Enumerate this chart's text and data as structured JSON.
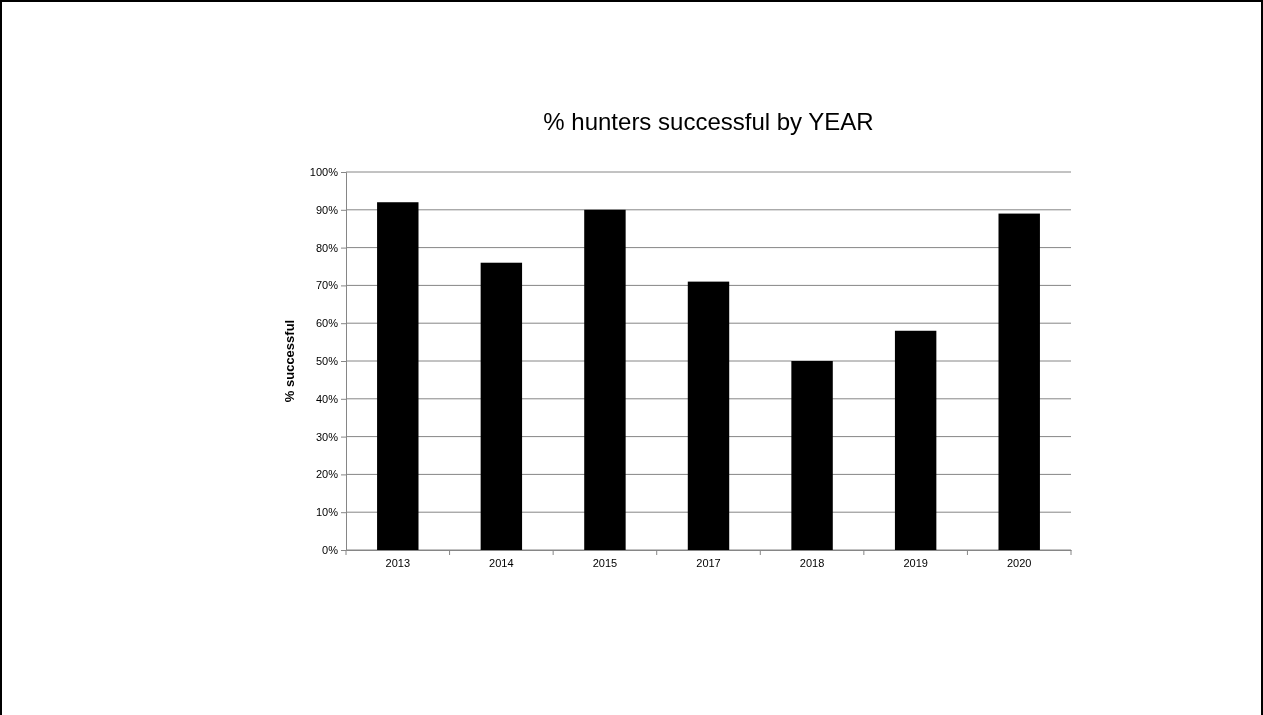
{
  "chart_data": {
    "type": "bar",
    "title": "% hunters successful by YEAR",
    "ylabel": "% successful",
    "categories": [
      "2013",
      "2014",
      "2015",
      "2017",
      "2018",
      "2019",
      "2020"
    ],
    "values": [
      92,
      76,
      90,
      71,
      50,
      58,
      89
    ],
    "color": "#000000",
    "ylim": [
      0,
      100
    ],
    "yticks": [
      {
        "value": 0,
        "label": "0%"
      },
      {
        "value": 10,
        "label": "10%"
      },
      {
        "value": 20,
        "label": "20%"
      },
      {
        "value": 30,
        "label": "30%"
      },
      {
        "value": 40,
        "label": "40%"
      },
      {
        "value": 50,
        "label": "50%"
      },
      {
        "value": 60,
        "label": "60%"
      },
      {
        "value": 70,
        "label": "70%"
      },
      {
        "value": 80,
        "label": "80%"
      },
      {
        "value": 90,
        "label": "90%"
      },
      {
        "value": 100,
        "label": "100%"
      }
    ],
    "grid": "y"
  }
}
